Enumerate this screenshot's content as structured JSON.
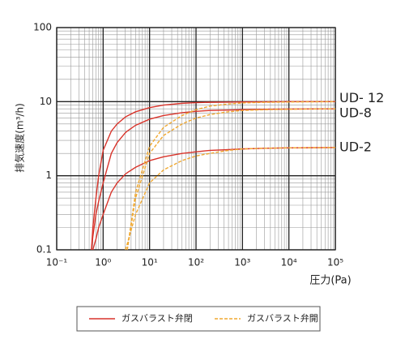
{
  "chart_data": {
    "type": "line",
    "xlabel": "圧力(Pa)",
    "ylabel": "排気速度(m³/h)",
    "log_x": true,
    "log_y": true,
    "grid": true,
    "xlim": [
      0.1,
      100000
    ],
    "xticks": [
      {
        "value": 0.1,
        "label": "10⁻¹"
      },
      {
        "value": 1,
        "label": "10⁰"
      },
      {
        "value": 10,
        "label": "10¹"
      },
      {
        "value": 100,
        "label": "10²"
      },
      {
        "value": 1000,
        "label": "10³"
      },
      {
        "value": 10000,
        "label": "10⁴"
      },
      {
        "value": 100000,
        "label": "10⁵"
      }
    ],
    "ylim": [
      0.1,
      100
    ],
    "yticks": [
      0.1,
      1,
      10,
      100
    ],
    "x": [
      0.56,
      0.6,
      0.7,
      0.8,
      1,
      1.5,
      2,
      3,
      3.3,
      5,
      10,
      20,
      50,
      100,
      200,
      500,
      1000,
      3000,
      10000,
      100000
    ],
    "series": [
      {
        "name": "ガスバラスト弁閉",
        "color": "#d9342b",
        "style": "solid",
        "lines": [
          {
            "label": "UD- 12",
            "values": [
              0.1,
              0.2,
              0.5,
              1,
              2.2,
              4,
              5,
              6.2,
              6.4,
              7.3,
              8.3,
              9,
              9.5,
              9.7,
              9.8,
              9.85,
              9.9,
              9.95,
              10,
              10
            ]
          },
          {
            "label": "UD-8",
            "values": [
              0.1,
              0.15,
              0.3,
              0.45,
              0.8,
              2,
              2.8,
              3.8,
              4,
              4.8,
              5.8,
              6.5,
              7.1,
              7.4,
              7.6,
              7.7,
              7.8,
              7.9,
              7.95,
              8
            ]
          },
          {
            "label": "UD-2",
            "values": [
              null,
              0.1,
              0.14,
              0.2,
              0.3,
              0.6,
              0.8,
              1.05,
              1.1,
              1.3,
              1.6,
              1.8,
              2,
              2.1,
              2.2,
              2.25,
              2.3,
              2.35,
              2.38,
              2.4
            ]
          }
        ]
      },
      {
        "name": "ガスバラスト弁開",
        "color": "#f0a830",
        "style": "dashed",
        "lines": [
          {
            "values": [
              null,
              null,
              null,
              null,
              null,
              null,
              null,
              null,
              0.1,
              0.6,
              2.5,
              4.5,
              6.5,
              7.8,
              8.7,
              9.3,
              9.6,
              9.8,
              9.9,
              10
            ]
          },
          {
            "values": [
              null,
              null,
              null,
              null,
              null,
              null,
              null,
              null,
              0.1,
              0.5,
              2,
              3.5,
              5,
              6,
              6.7,
              7.3,
              7.6,
              7.8,
              7.9,
              8
            ]
          },
          {
            "values": [
              null,
              null,
              null,
              null,
              null,
              null,
              null,
              0.1,
              0.12,
              0.3,
              0.8,
              1.2,
              1.6,
              1.85,
              2,
              2.2,
              2.3,
              2.35,
              2.38,
              2.4
            ]
          }
        ]
      }
    ]
  }
}
